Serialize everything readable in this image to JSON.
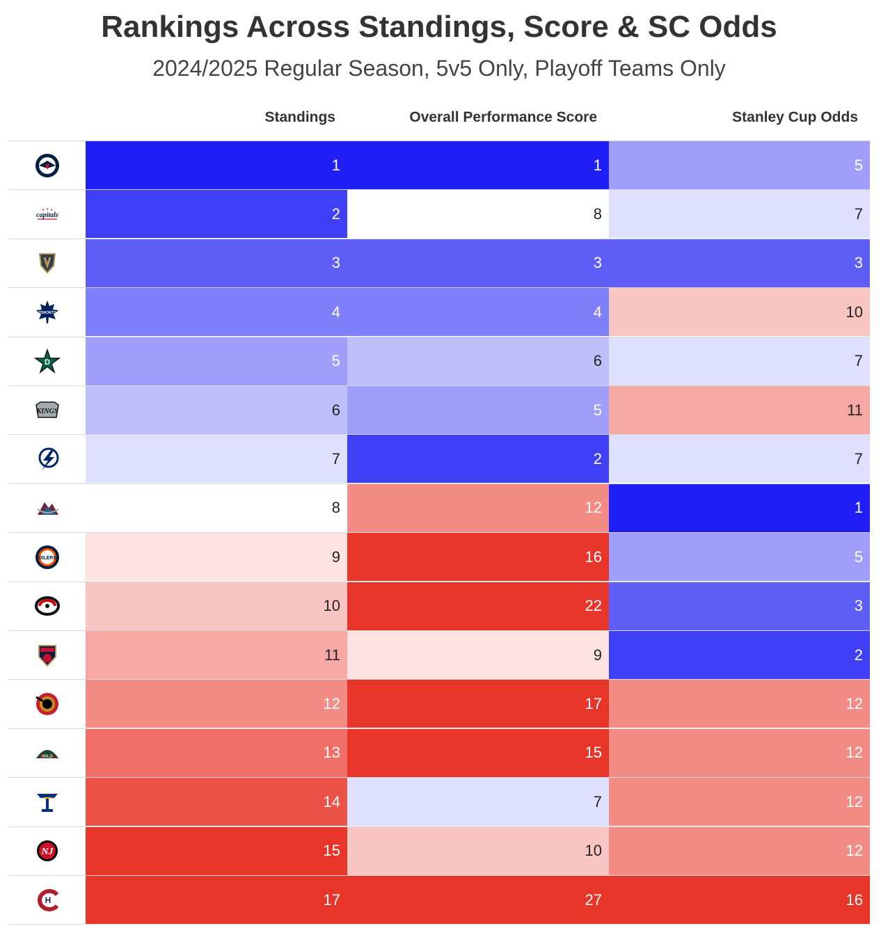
{
  "chart_data": {
    "type": "table",
    "title": "Rankings Across Standings, Score & SC Odds",
    "subtitle": "2024/2025 Regular Season, 5v5 Only, Playoff Teams Only",
    "columns": [
      "Standings",
      "Overall Performance Score",
      "Stanley Cup Odds"
    ],
    "rows": [
      {
        "team": "Winnipeg Jets",
        "logo": "jets-logo-icon",
        "values": [
          "1",
          "1",
          "5"
        ]
      },
      {
        "team": "Washington Capitals",
        "logo": "capitals-logo-icon",
        "values": [
          "2",
          "8",
          "7"
        ]
      },
      {
        "team": "Vegas Golden Knights",
        "logo": "golden-knights-logo-icon",
        "values": [
          "3",
          "3",
          "3"
        ]
      },
      {
        "team": "Toronto Maple Leafs",
        "logo": "maple-leafs-logo-icon",
        "values": [
          "4",
          "4",
          "10"
        ]
      },
      {
        "team": "Dallas Stars",
        "logo": "stars-logo-icon",
        "values": [
          "5",
          "6",
          "7"
        ]
      },
      {
        "team": "Los Angeles Kings",
        "logo": "kings-logo-icon",
        "values": [
          "6",
          "5",
          "11"
        ]
      },
      {
        "team": "Tampa Bay Lightning",
        "logo": "lightning-logo-icon",
        "values": [
          "7",
          "2",
          "7"
        ]
      },
      {
        "team": "Colorado Avalanche",
        "logo": "avalanche-logo-icon",
        "values": [
          "8",
          "12",
          "1"
        ]
      },
      {
        "team": "Edmonton Oilers",
        "logo": "oilers-logo-icon",
        "values": [
          "9",
          "16",
          "5"
        ]
      },
      {
        "team": "Carolina Hurricanes",
        "logo": "hurricanes-logo-icon",
        "values": [
          "10",
          "22",
          "3"
        ]
      },
      {
        "team": "Florida Panthers",
        "logo": "panthers-logo-icon",
        "values": [
          "11",
          "9",
          "2"
        ]
      },
      {
        "team": "Ottawa Senators",
        "logo": "senators-logo-icon",
        "values": [
          "12",
          "17",
          "12"
        ]
      },
      {
        "team": "Minnesota Wild",
        "logo": "wild-logo-icon",
        "values": [
          "13",
          "15",
          "12"
        ]
      },
      {
        "team": "St. Louis Blues",
        "logo": "blues-logo-icon",
        "values": [
          "14",
          "7",
          "12"
        ]
      },
      {
        "team": "New Jersey Devils",
        "logo": "devils-logo-icon",
        "values": [
          "15",
          "10",
          "12"
        ]
      },
      {
        "team": "Montreal Canadiens",
        "logo": "canadiens-logo-icon",
        "values": [
          "17",
          "27",
          "16"
        ]
      }
    ],
    "color_scale": {
      "low_rank_color": "#1f1ff5",
      "mid_color": "#ffffff",
      "high_rank_color": "#e8352a",
      "mid_rank": 8
    }
  }
}
